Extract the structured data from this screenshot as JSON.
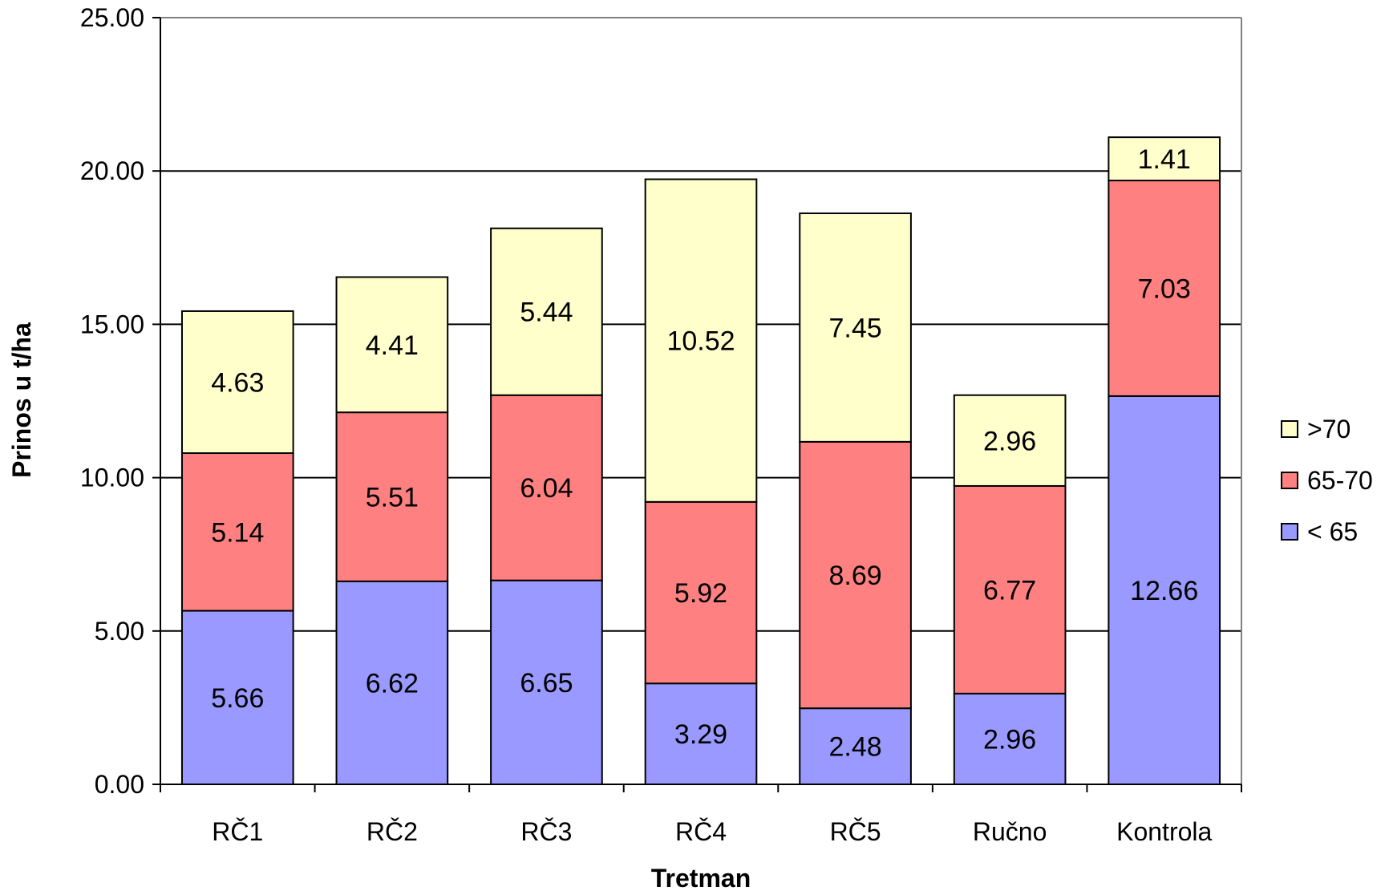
{
  "chart_data": {
    "type": "bar",
    "stacked": true,
    "categories": [
      "RČ1",
      "RČ2",
      "RČ3",
      "RČ4",
      "RČ5",
      "Ručno",
      "Kontrola"
    ],
    "series": [
      {
        "name": "< 65",
        "color": "#9999ff",
        "values": [
          5.66,
          6.62,
          6.65,
          3.29,
          2.48,
          2.96,
          12.66
        ]
      },
      {
        "name": "65-70",
        "color": "#ff8080",
        "values": [
          5.14,
          5.51,
          6.04,
          5.92,
          8.69,
          6.77,
          7.03
        ]
      },
      {
        "name": ">70",
        "color": "#ffffcc",
        "values": [
          4.63,
          4.41,
          5.44,
          10.52,
          7.45,
          2.96,
          1.41
        ]
      }
    ],
    "legend_order": [
      ">70",
      "65-70",
      "< 65"
    ],
    "legend_position": "right",
    "xlabel": "Tretman",
    "ylabel": "Prinos u t/ha",
    "ylim": [
      0,
      25
    ],
    "yticks": [
      "0.00",
      "5.00",
      "10.00",
      "15.00",
      "20.00",
      "25.00"
    ],
    "grid": true
  }
}
